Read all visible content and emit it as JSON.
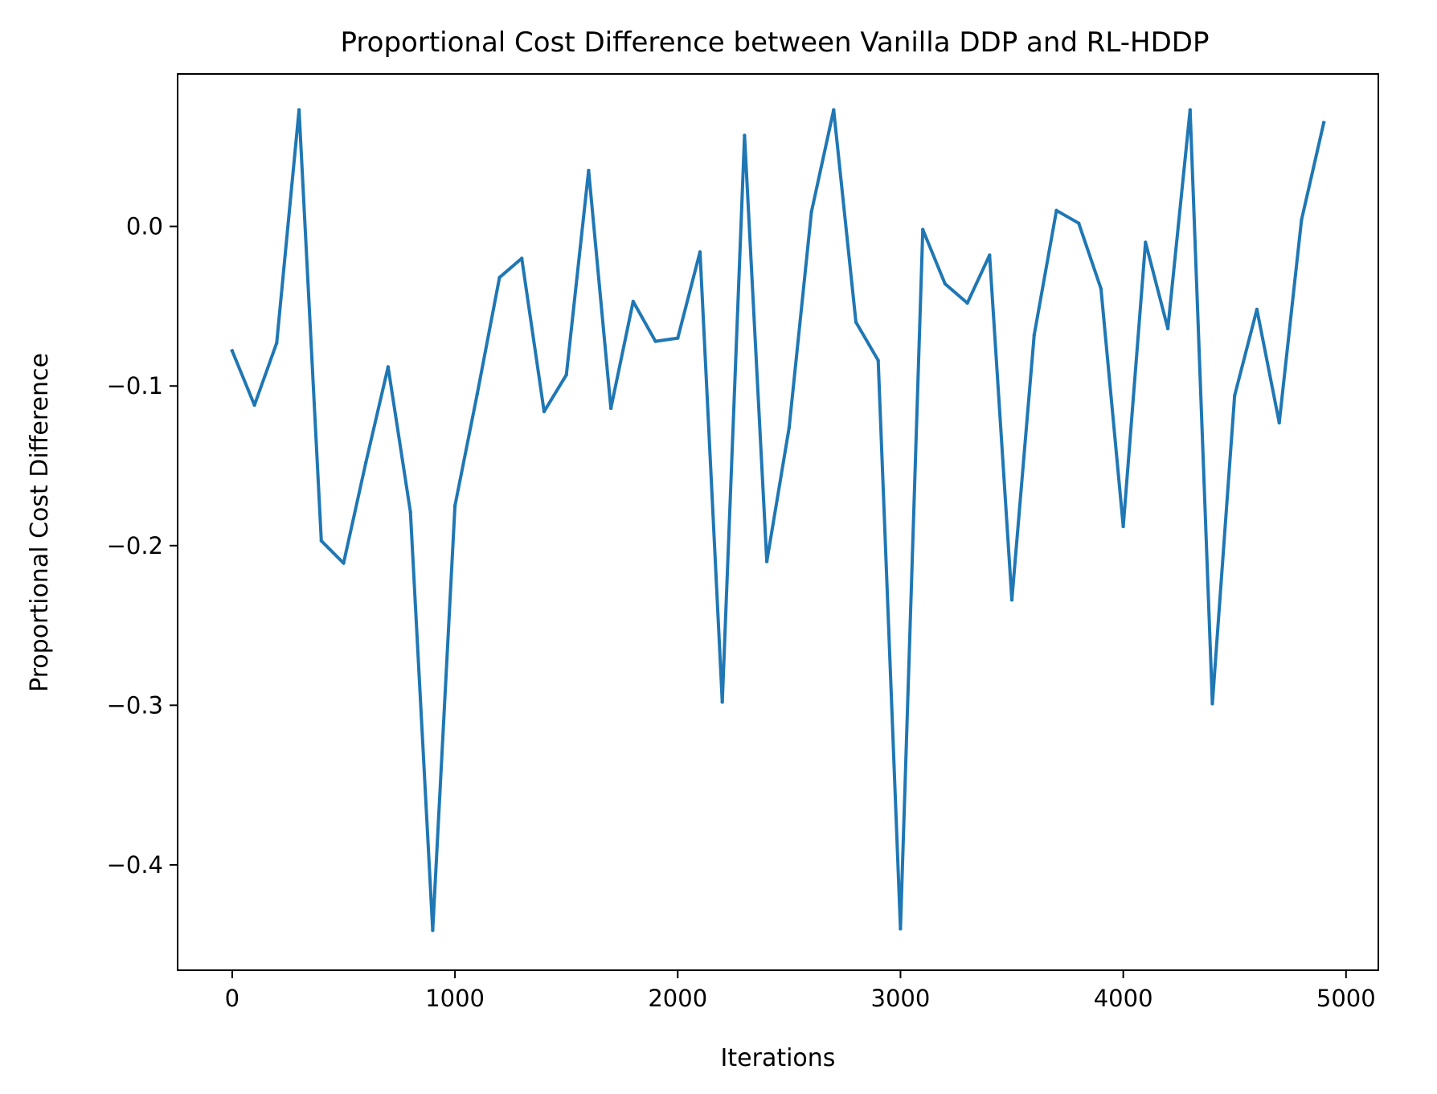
{
  "chart_data": {
    "type": "line",
    "title": "Proportional Cost Difference between Vanilla DDP and RL-HDDP",
    "xlabel": "Iterations",
    "ylabel": "Proportional Cost Difference",
    "xlim": [
      -245,
      5145
    ],
    "ylim": [
      -0.466,
      0.0955
    ],
    "x_ticks": [
      0,
      1000,
      2000,
      3000,
      4000,
      5000
    ],
    "x_tick_labels": [
      "0",
      "1000",
      "2000",
      "3000",
      "4000",
      "5000"
    ],
    "y_ticks": [
      0.0,
      -0.1,
      -0.2,
      -0.3,
      -0.4
    ],
    "y_tick_labels": [
      "0.0",
      "−0.1",
      "−0.2",
      "−0.3",
      "−0.4"
    ],
    "grid": false,
    "line_color": "#1f77b4",
    "series": [
      {
        "x": [
          0,
          100,
          200,
          300,
          400,
          500,
          600,
          700,
          800,
          900,
          1000,
          1100,
          1200,
          1300,
          1400,
          1500,
          1600,
          1700,
          1800,
          1900,
          2000,
          2100,
          2200,
          2300,
          2400,
          2500,
          2600,
          2700,
          2800,
          2900,
          3000,
          3100,
          3200,
          3300,
          3400,
          3500,
          3600,
          3700,
          3800,
          3900,
          4000,
          4100,
          4200,
          4300,
          4400,
          4500,
          4600,
          4700,
          4800,
          4900
        ],
        "values": [
          -0.078,
          -0.112,
          -0.073,
          0.073,
          -0.197,
          -0.211,
          -0.148,
          -0.088,
          -0.179,
          -0.441,
          -0.175,
          -0.105,
          -0.032,
          -0.02,
          -0.116,
          -0.093,
          0.035,
          -0.114,
          -0.047,
          -0.072,
          -0.07,
          -0.016,
          -0.298,
          0.057,
          -0.21,
          -0.126,
          0.009,
          0.073,
          -0.06,
          -0.084,
          -0.44,
          -0.002,
          -0.036,
          -0.048,
          -0.018,
          -0.234,
          -0.068,
          0.01,
          0.002,
          -0.039,
          -0.188,
          -0.01,
          -0.064,
          0.073,
          -0.299,
          -0.106,
          -0.052,
          -0.123,
          0.004,
          0.065
        ]
      }
    ]
  }
}
